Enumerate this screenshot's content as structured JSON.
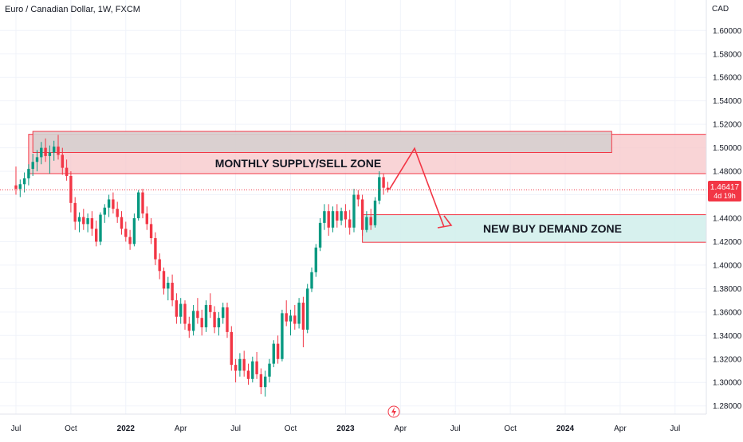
{
  "header": {
    "symbol_title": "Euro / Canadian Dollar, 1W, FXCM",
    "currency": "CAD"
  },
  "price_tag": {
    "value": "1.46417",
    "countdown": "4d 19h",
    "color": "#f23645"
  },
  "colors": {
    "up": "#089981",
    "down": "#f23645",
    "supply_fill": "#f7c5c8",
    "supply_stroke": "#f23645",
    "monthly_fill": "#d6cfcf",
    "demand_fill": "#d3efec",
    "demand_stroke": "#f23645",
    "arrow": "#f23645",
    "grid": "#f0f3fa"
  },
  "chart_data": {
    "type": "candlestick",
    "title": "Euro / Canadian Dollar, 1W, FXCM",
    "ylabel": "CAD",
    "ylim": [
      1.273,
      1.626
    ],
    "y_ticks": [
      "1.28000",
      "1.30000",
      "1.32000",
      "1.34000",
      "1.36000",
      "1.38000",
      "1.40000",
      "1.42000",
      "1.44000",
      "1.46000",
      "1.48000",
      "1.50000",
      "1.52000",
      "1.54000",
      "1.56000",
      "1.58000",
      "1.60000"
    ],
    "x_ticks": [
      {
        "label": "Jul",
        "week": 0
      },
      {
        "label": "Oct",
        "week": 13
      },
      {
        "label": "2022",
        "week": 26
      },
      {
        "label": "Apr",
        "week": 39
      },
      {
        "label": "Jul",
        "week": 52
      },
      {
        "label": "Oct",
        "week": 65
      },
      {
        "label": "2023",
        "week": 78
      },
      {
        "label": "Apr",
        "week": 91
      },
      {
        "label": "Jul",
        "week": 104
      },
      {
        "label": "Oct",
        "week": 117
      },
      {
        "label": "2024",
        "week": 130
      },
      {
        "label": "Apr",
        "week": 143
      },
      {
        "label": "Jul",
        "week": 156
      }
    ],
    "grid": true,
    "current_price": 1.46417,
    "candles": [
      [
        1.468,
        1.484,
        1.46,
        1.465
      ],
      [
        1.465,
        1.473,
        1.458,
        1.469
      ],
      [
        1.469,
        1.479,
        1.462,
        1.474
      ],
      [
        1.474,
        1.486,
        1.468,
        1.482
      ],
      [
        1.482,
        1.495,
        1.476,
        1.488
      ],
      [
        1.488,
        1.498,
        1.48,
        1.492
      ],
      [
        1.492,
        1.505,
        1.486,
        1.5
      ],
      [
        1.5,
        1.508,
        1.488,
        1.493
      ],
      [
        1.493,
        1.502,
        1.478,
        1.496
      ],
      [
        1.496,
        1.506,
        1.489,
        1.501
      ],
      [
        1.501,
        1.511,
        1.49,
        1.494
      ],
      [
        1.494,
        1.5,
        1.477,
        1.483
      ],
      [
        1.483,
        1.49,
        1.472,
        1.476
      ],
      [
        1.476,
        1.48,
        1.445,
        1.453
      ],
      [
        1.453,
        1.458,
        1.43,
        1.437
      ],
      [
        1.437,
        1.445,
        1.428,
        1.441
      ],
      [
        1.441,
        1.448,
        1.43,
        1.435
      ],
      [
        1.435,
        1.444,
        1.428,
        1.44
      ],
      [
        1.44,
        1.446,
        1.425,
        1.431
      ],
      [
        1.431,
        1.438,
        1.416,
        1.42
      ],
      [
        1.42,
        1.445,
        1.417,
        1.443
      ],
      [
        1.443,
        1.452,
        1.436,
        1.449
      ],
      [
        1.449,
        1.46,
        1.441,
        1.456
      ],
      [
        1.456,
        1.462,
        1.444,
        1.448
      ],
      [
        1.448,
        1.454,
        1.436,
        1.441
      ],
      [
        1.441,
        1.446,
        1.426,
        1.431
      ],
      [
        1.431,
        1.437,
        1.42,
        1.424
      ],
      [
        1.424,
        1.43,
        1.413,
        1.418
      ],
      [
        1.418,
        1.444,
        1.416,
        1.44
      ],
      [
        1.44,
        1.464,
        1.438,
        1.462
      ],
      [
        1.462,
        1.465,
        1.44,
        1.444
      ],
      [
        1.444,
        1.45,
        1.43,
        1.435
      ],
      [
        1.435,
        1.44,
        1.418,
        1.423
      ],
      [
        1.423,
        1.428,
        1.4,
        1.405
      ],
      [
        1.405,
        1.41,
        1.388,
        1.395
      ],
      [
        1.395,
        1.398,
        1.375,
        1.38
      ],
      [
        1.38,
        1.39,
        1.37,
        1.385
      ],
      [
        1.385,
        1.392,
        1.365,
        1.37
      ],
      [
        1.37,
        1.376,
        1.35,
        1.356
      ],
      [
        1.356,
        1.372,
        1.35,
        1.367
      ],
      [
        1.367,
        1.37,
        1.345,
        1.35
      ],
      [
        1.35,
        1.356,
        1.338,
        1.344
      ],
      [
        1.344,
        1.366,
        1.34,
        1.361
      ],
      [
        1.361,
        1.372,
        1.35,
        1.355
      ],
      [
        1.355,
        1.362,
        1.34,
        1.347
      ],
      [
        1.347,
        1.37,
        1.343,
        1.366
      ],
      [
        1.366,
        1.376,
        1.355,
        1.36
      ],
      [
        1.36,
        1.365,
        1.342,
        1.347
      ],
      [
        1.347,
        1.36,
        1.34,
        1.355
      ],
      [
        1.355,
        1.368,
        1.35,
        1.364
      ],
      [
        1.364,
        1.368,
        1.338,
        1.343
      ],
      [
        1.343,
        1.348,
        1.31,
        1.315
      ],
      [
        1.315,
        1.32,
        1.3,
        1.31
      ],
      [
        1.31,
        1.325,
        1.305,
        1.32
      ],
      [
        1.32,
        1.327,
        1.305,
        1.31
      ],
      [
        1.31,
        1.316,
        1.298,
        1.303
      ],
      [
        1.303,
        1.322,
        1.3,
        1.318
      ],
      [
        1.318,
        1.326,
        1.303,
        1.307
      ],
      [
        1.307,
        1.312,
        1.29,
        1.296
      ],
      [
        1.296,
        1.31,
        1.288,
        1.305
      ],
      [
        1.305,
        1.32,
        1.3,
        1.316
      ],
      [
        1.316,
        1.336,
        1.313,
        1.333
      ],
      [
        1.333,
        1.34,
        1.316,
        1.32
      ],
      [
        1.32,
        1.362,
        1.318,
        1.359
      ],
      [
        1.359,
        1.37,
        1.348,
        1.352
      ],
      [
        1.352,
        1.362,
        1.34,
        1.357
      ],
      [
        1.357,
        1.366,
        1.345,
        1.35
      ],
      [
        1.35,
        1.372,
        1.346,
        1.368
      ],
      [
        1.368,
        1.373,
        1.33,
        1.345
      ],
      [
        1.345,
        1.384,
        1.342,
        1.38
      ],
      [
        1.38,
        1.398,
        1.377,
        1.394
      ],
      [
        1.394,
        1.418,
        1.39,
        1.415
      ],
      [
        1.415,
        1.44,
        1.412,
        1.436
      ],
      [
        1.436,
        1.452,
        1.43,
        1.446
      ],
      [
        1.446,
        1.452,
        1.425,
        1.432
      ],
      [
        1.432,
        1.45,
        1.428,
        1.446
      ],
      [
        1.446,
        1.452,
        1.432,
        1.438
      ],
      [
        1.438,
        1.449,
        1.434,
        1.446
      ],
      [
        1.446,
        1.452,
        1.432,
        1.439
      ],
      [
        1.439,
        1.447,
        1.426,
        1.432
      ],
      [
        1.432,
        1.465,
        1.428,
        1.46
      ],
      [
        1.46,
        1.464,
        1.45,
        1.456
      ],
      [
        1.456,
        1.46,
        1.425,
        1.43
      ],
      [
        1.43,
        1.446,
        1.428,
        1.441
      ],
      [
        1.441,
        1.448,
        1.43,
        1.434
      ],
      [
        1.434,
        1.458,
        1.432,
        1.455
      ],
      [
        1.455,
        1.48,
        1.452,
        1.475
      ],
      [
        1.475,
        1.478,
        1.46,
        1.466
      ],
      [
        1.466,
        1.471,
        1.462,
        1.464
      ]
    ],
    "zones": [
      {
        "name": "MONTHLY SUPPLY/SELL ZONE",
        "top": 1.5115,
        "bottom": 1.478,
        "x_start_week": 3
      },
      {
        "name": "",
        "top": 1.514,
        "bottom": 1.496,
        "x_start_week": 4,
        "x_end_week": 141
      },
      {
        "name": "NEW BUY DEMAND ZONE",
        "top": 1.443,
        "bottom": 1.4195,
        "x_start_week": 82
      }
    ]
  }
}
